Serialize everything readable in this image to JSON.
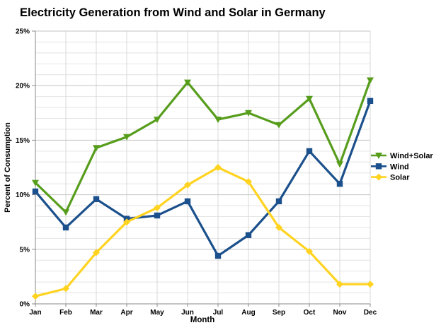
{
  "chart_data": {
    "type": "line",
    "title": "Electricity Generation from Wind and Solar in Germany",
    "xlabel": "Month",
    "ylabel": "Percent of Consumption",
    "categories": [
      "Jan",
      "Feb",
      "Mar",
      "Apr",
      "May",
      "Jun",
      "Jul",
      "Aug",
      "Sep",
      "Oct",
      "Nov",
      "Dec"
    ],
    "ylim": [
      0,
      25
    ],
    "y_major": 5,
    "y_minor": 1,
    "y_ticks": [
      {
        "value": 0,
        "label": "0%"
      },
      {
        "value": 5,
        "label": "5%"
      },
      {
        "value": 10,
        "label": "10%"
      },
      {
        "value": 15,
        "label": "15%"
      },
      {
        "value": 20,
        "label": "20%"
      },
      {
        "value": 25,
        "label": "25%"
      }
    ],
    "grid": true,
    "legend_position": "right",
    "series": [
      {
        "name": "Wind+Solar",
        "color": "#579D1C",
        "marker": "triangle-down",
        "values": [
          11.1,
          8.4,
          14.3,
          15.3,
          16.9,
          20.3,
          16.9,
          17.5,
          16.4,
          18.8,
          12.8,
          20.5
        ]
      },
      {
        "name": "Wind",
        "color": "#1B508C",
        "marker": "square",
        "values": [
          10.3,
          7.0,
          9.6,
          7.8,
          8.1,
          9.4,
          4.4,
          6.3,
          9.4,
          14.0,
          11.0,
          18.6
        ]
      },
      {
        "name": "Solar",
        "color": "#FFD320",
        "marker": "diamond",
        "values": [
          0.7,
          1.4,
          4.7,
          7.5,
          8.8,
          10.9,
          12.5,
          11.2,
          7.0,
          4.8,
          1.8,
          1.8
        ]
      }
    ],
    "colors": {
      "grid_minor": "#E4E4E4",
      "grid_major": "#C3C3C3",
      "grid_vertical": "#D9D9D9",
      "axis": "#8A8A8A",
      "text": "#000000",
      "background": "#FFFFFF"
    }
  }
}
